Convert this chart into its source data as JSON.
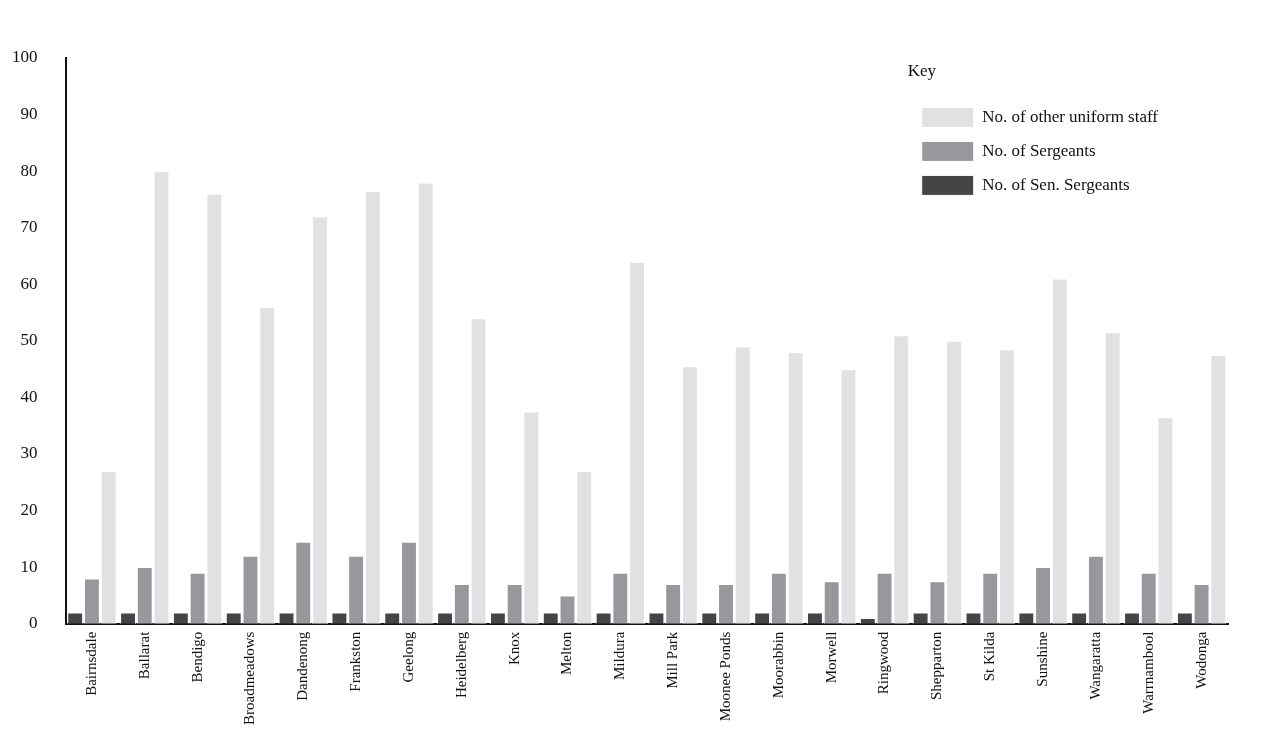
{
  "chart_data": {
    "type": "bar",
    "legend_title": "Key",
    "legend": "top right",
    "grid": false,
    "categories": [
      "Bairnsdale",
      "Ballarat",
      "Bendigo",
      "Broadmeadows",
      "Dandenong",
      "Frankston",
      "Geelong",
      "Heidelberg",
      "Knox",
      "Melton",
      "Mildura",
      "Mill Park",
      "Moonee Ponds",
      "Moorabbin",
      "Morwell",
      "Ringwood",
      "Shepparton",
      "St Kilda",
      "Sunshine",
      "Wangaratta",
      "Warrnambool",
      "Wodonga"
    ],
    "series": [
      {
        "name": "No. of Sen. Sergeants",
        "color": "#454547",
        "values": [
          2,
          2,
          2,
          2,
          2,
          2,
          2,
          2,
          2,
          2,
          2,
          2,
          2,
          2,
          2,
          1,
          2,
          2,
          2,
          2,
          2,
          2
        ]
      },
      {
        "name": "No. of Sergeants",
        "color": "#97989c",
        "values": [
          8,
          10,
          9,
          12,
          14.5,
          12,
          14.5,
          7,
          7,
          5,
          9,
          7,
          7,
          9,
          7.5,
          9,
          7.5,
          9,
          10,
          12,
          9,
          7
        ]
      },
      {
        "name": "No. of other uniform staff",
        "color": "#e0e1e3",
        "values": [
          27,
          80,
          76,
          56,
          72,
          76.5,
          78,
          54,
          37.5,
          27,
          64,
          45.5,
          49,
          48,
          45,
          51,
          50,
          48.5,
          61,
          51.5,
          36.5,
          47.5
        ]
      }
    ],
    "ylim": [
      0,
      100
    ],
    "yticks": [
      0,
      10,
      20,
      30,
      40,
      50,
      60,
      70,
      80,
      90,
      100
    ]
  }
}
